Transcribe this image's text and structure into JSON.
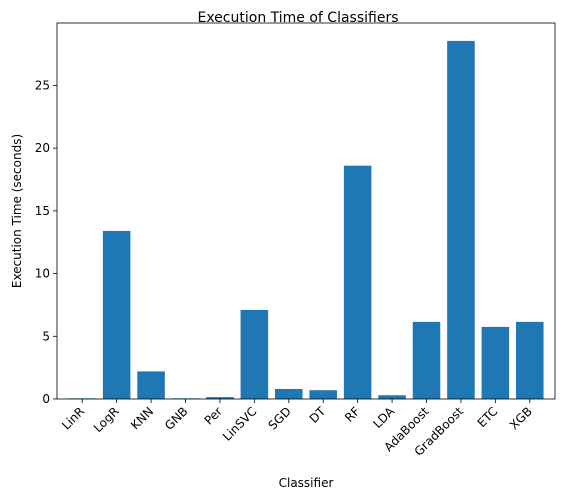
{
  "chart_data": {
    "type": "bar",
    "title": "Execution Time of Classifiers",
    "xlabel": "Classifier",
    "ylabel": "Execution Time (seconds)",
    "categories": [
      "LinR",
      "LogR",
      "KNN",
      "GNB",
      "Per",
      "LinSVC",
      "SGD",
      "DT",
      "RF",
      "LDA",
      "AdaBoost",
      "GradBoost",
      "ETC",
      "XGB"
    ],
    "values": [
      0.05,
      13.4,
      2.2,
      0.05,
      0.15,
      7.1,
      0.8,
      0.7,
      18.6,
      0.3,
      6.15,
      28.55,
      5.75,
      6.15
    ],
    "ylim": [
      0,
      29.98
    ],
    "yticks": [
      0,
      5,
      10,
      15,
      20,
      25
    ],
    "bar_color": "#1f77b4",
    "grid": false,
    "legend": "none"
  }
}
